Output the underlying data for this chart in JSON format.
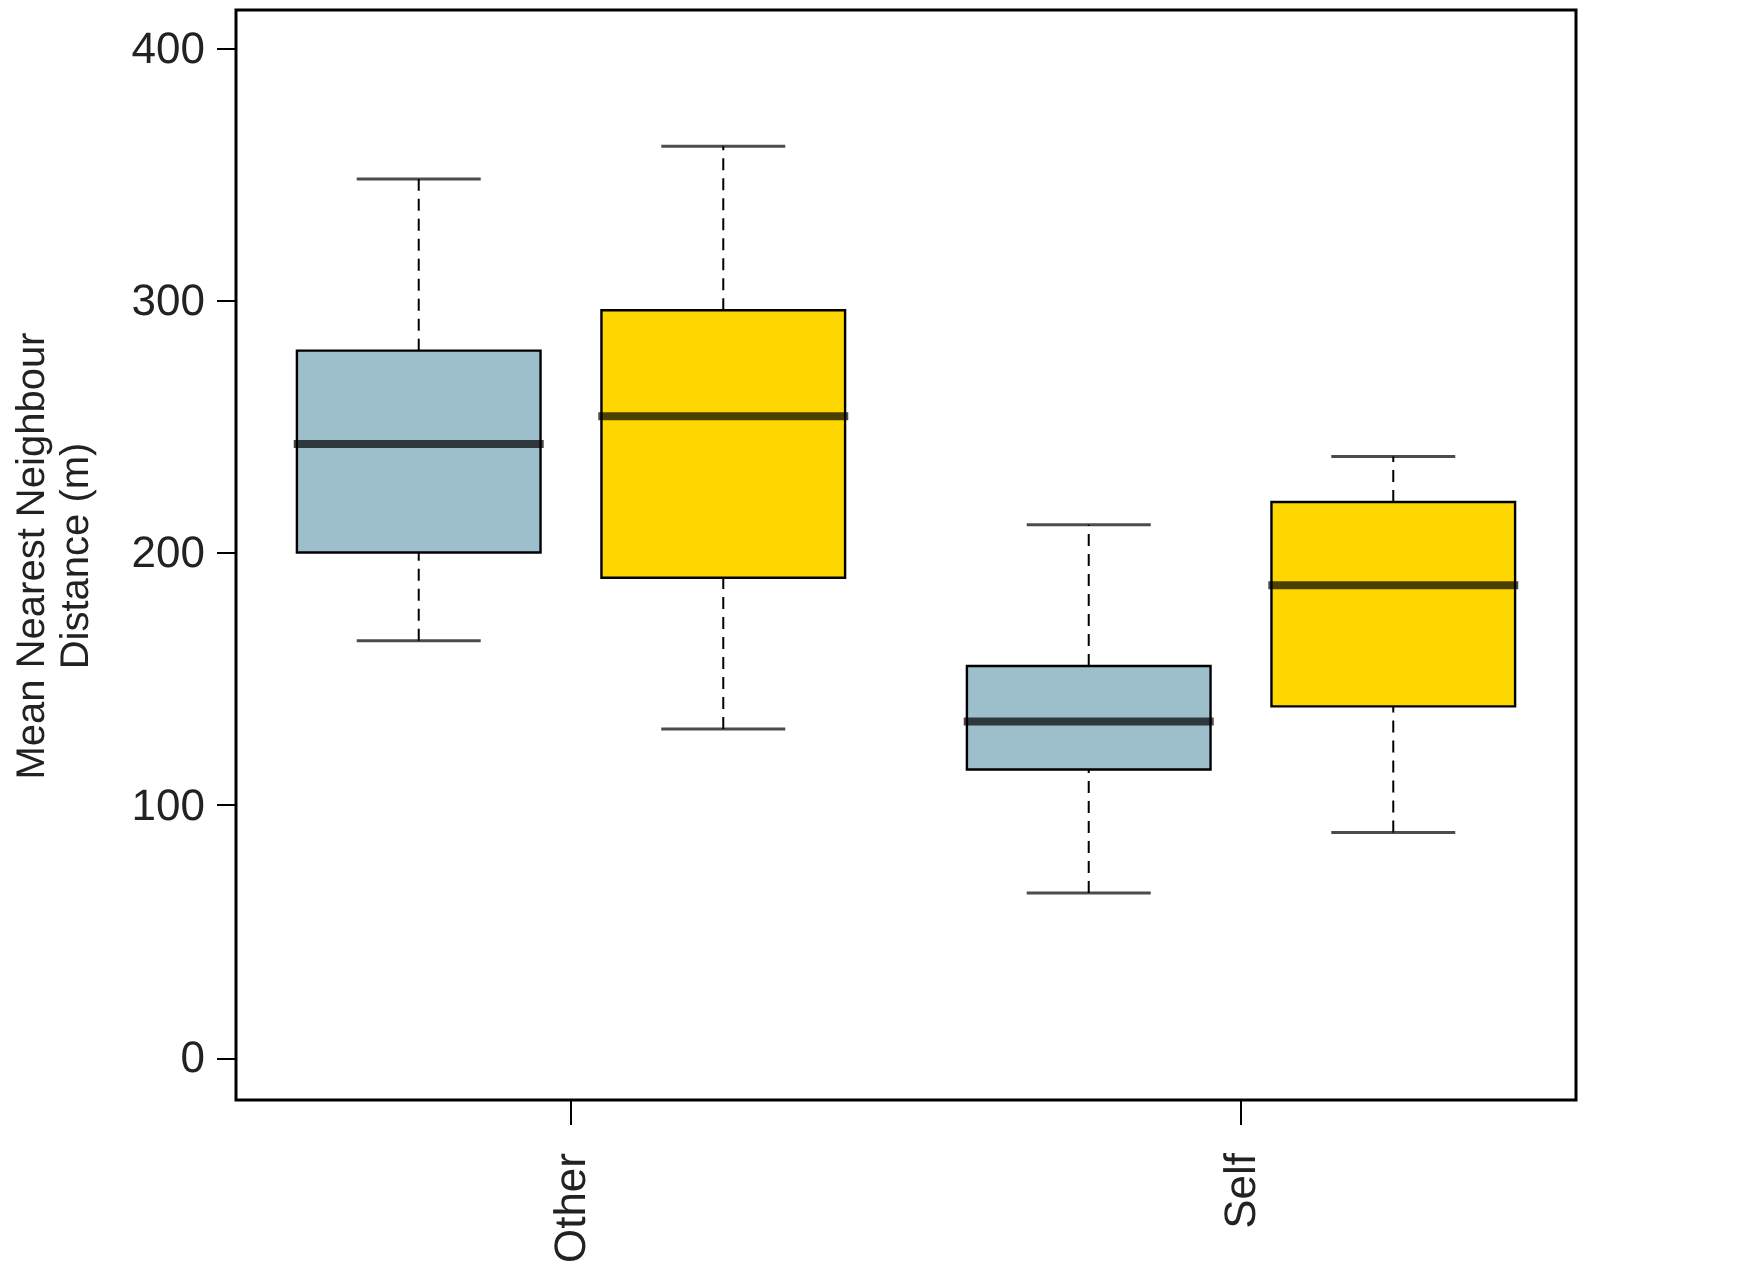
{
  "chart_data": {
    "type": "box",
    "ylabel": "Mean Nearest Neighbour\nDistance (m)",
    "categories": [
      "Other",
      "Self"
    ],
    "series": [
      {
        "color": "#9dbfcc",
        "boxes": [
          {
            "low": 165,
            "q1": 200,
            "median": 243,
            "q3": 280,
            "high": 348
          },
          {
            "low": 65,
            "q1": 114,
            "median": 133,
            "q3": 155,
            "high": 211
          }
        ]
      },
      {
        "color": "#ffd700",
        "boxes": [
          {
            "low": 130,
            "q1": 190,
            "median": 254,
            "q3": 296,
            "high": 361
          },
          {
            "low": 89,
            "q1": 139,
            "median": 187,
            "q3": 220,
            "high": 238
          }
        ]
      }
    ],
    "ylim": [
      -17,
      415
    ],
    "yticks": [
      0,
      100,
      200,
      300,
      400
    ],
    "grid": false
  }
}
